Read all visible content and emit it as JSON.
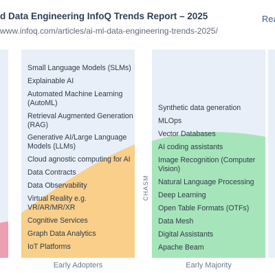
{
  "header": {
    "title": "d Data Engineering InfoQ Trends Report – 2025",
    "url": "www.infoq.com/articles/ai-ml-data-engineering-trends-2025/",
    "read_link": "Read"
  },
  "early_adopters": {
    "label": "Early Adopters",
    "items": [
      "Small Language Models (SLMs)",
      "Explainable AI",
      "Automated Machine Learning (AutoML)",
      "Retrieval Augmented Generation (RAG)",
      "Generative AI/Large Language Models (LLMs)",
      "Cloud agnostic computing for AI",
      "Data Contracts",
      "Data Observability",
      "Virtual Reality e.g. VR/AR/MR/XR",
      "Cognitive Services",
      "Graph Data Analytics",
      "IoT Platforms"
    ]
  },
  "chasm_label": "CHASM",
  "early_majority": {
    "label": "Early Majority",
    "items": [
      "Synthetic data generation",
      "MLOps",
      "Vector Databases",
      "AI coding assistants",
      "Image Recognition (Computer Vision)",
      "Natural Language Processing",
      "Deep Learning",
      "Open Table Formats (OTFs)",
      "Data Mesh",
      "Digital Assistants",
      "Apache Beam"
    ]
  },
  "colors": {
    "panel_bg": "#e8eff8",
    "early_adopters_curve": "#f9cf8a",
    "early_majority_curve": "#a6e5b9",
    "innovators_curve": "#ec9fb0"
  }
}
